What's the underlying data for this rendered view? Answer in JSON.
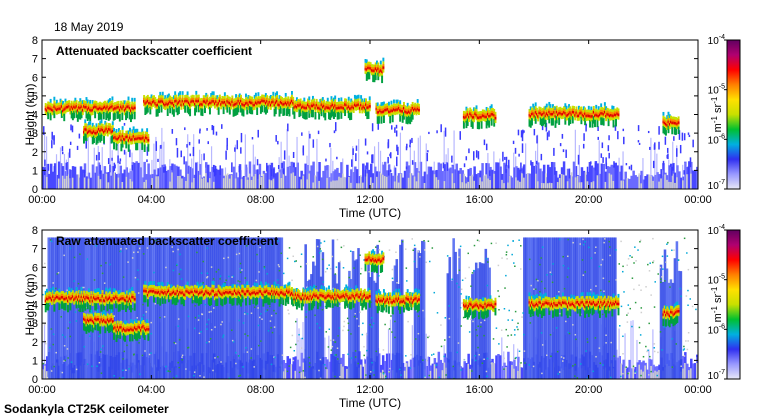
{
  "date": "18 May 2019",
  "footer": "Sodankyla CT25K ceilometer",
  "colorbar": {
    "unit_m": "m",
    "unit_m_exp": "-1",
    "unit_sr": " sr",
    "unit_sr_exp": "-1",
    "ticks": [
      {
        "base": "10",
        "exp": "-4"
      },
      {
        "base": "10",
        "exp": "-5"
      },
      {
        "base": "10",
        "exp": "-6"
      },
      {
        "base": "10",
        "exp": "-7"
      }
    ],
    "colors": [
      "#e8e8f8",
      "#9898ff",
      "#3030f0",
      "#00b0e0",
      "#00c030",
      "#c8e000",
      "#ffe000",
      "#ff8000",
      "#ff0000",
      "#b00070",
      "#600060"
    ]
  },
  "chart_data": [
    {
      "type": "heatmap",
      "title": "Attenuated backscatter coefficient",
      "xlabel": "Time (UTC)",
      "ylabel": "Height (km)",
      "xticks": [
        "00:00",
        "04:00",
        "08:00",
        "12:00",
        "16:00",
        "20:00",
        "00:00"
      ],
      "yticks": [
        "0",
        "1",
        "2",
        "3",
        "4",
        "5",
        "6",
        "7",
        "8"
      ],
      "xlim_hours": [
        0,
        24
      ],
      "ylim_km": [
        0,
        8
      ],
      "colorscale_range": [
        1e-07,
        0.0001
      ],
      "features": [
        {
          "name": "cloud-layer",
          "start_h": 0.1,
          "end_h": 3.4,
          "height_km": 4.3
        },
        {
          "name": "cloud-layer",
          "start_h": 3.7,
          "end_h": 9.2,
          "height_km": 4.6
        },
        {
          "name": "cloud-layer",
          "start_h": 9.2,
          "end_h": 12.0,
          "height_km": 4.4
        },
        {
          "name": "lower-layer",
          "start_h": 1.5,
          "end_h": 2.6,
          "height_km": 3.1
        },
        {
          "name": "lower-layer",
          "start_h": 2.6,
          "end_h": 3.9,
          "height_km": 2.7
        },
        {
          "name": "high-cloud",
          "start_h": 11.8,
          "end_h": 12.5,
          "height_km": 6.4
        },
        {
          "name": "cloud-layer",
          "start_h": 12.2,
          "end_h": 13.8,
          "height_km": 4.2
        },
        {
          "name": "cloud-layer",
          "start_h": 15.4,
          "end_h": 16.6,
          "height_km": 3.9
        },
        {
          "name": "cloud-layer",
          "start_h": 17.8,
          "end_h": 21.1,
          "height_km": 4.0
        },
        {
          "name": "cloud-layer",
          "start_h": 22.7,
          "end_h": 23.3,
          "height_km": 3.5
        }
      ]
    },
    {
      "type": "heatmap",
      "title": "Raw attenuated backscatter coefficient",
      "xlabel": "Time (UTC)",
      "ylabel": "Height (km)",
      "xticks": [
        "00:00",
        "04:00",
        "08:00",
        "12:00",
        "16:00",
        "20:00",
        "00:00"
      ],
      "yticks": [
        "0",
        "1",
        "2",
        "3",
        "4",
        "5",
        "6",
        "7",
        "8"
      ],
      "xlim_hours": [
        0,
        24
      ],
      "ylim_km": [
        0,
        8
      ],
      "colorscale_range": [
        1e-07,
        0.0001
      ],
      "features": [
        {
          "name": "cloud-layer",
          "start_h": 0.1,
          "end_h": 3.4,
          "height_km": 4.3
        },
        {
          "name": "cloud-layer",
          "start_h": 3.7,
          "end_h": 9.2,
          "height_km": 4.6
        },
        {
          "name": "cloud-layer",
          "start_h": 9.2,
          "end_h": 12.0,
          "height_km": 4.4
        },
        {
          "name": "lower-layer",
          "start_h": 1.5,
          "end_h": 2.6,
          "height_km": 3.1
        },
        {
          "name": "lower-layer",
          "start_h": 2.6,
          "end_h": 3.9,
          "height_km": 2.7
        },
        {
          "name": "high-cloud",
          "start_h": 11.8,
          "end_h": 12.5,
          "height_km": 6.4
        },
        {
          "name": "cloud-layer",
          "start_h": 12.2,
          "end_h": 13.8,
          "height_km": 4.2
        },
        {
          "name": "cloud-layer",
          "start_h": 15.4,
          "end_h": 16.6,
          "height_km": 3.9
        },
        {
          "name": "cloud-layer",
          "start_h": 17.8,
          "end_h": 21.1,
          "height_km": 4.0
        },
        {
          "name": "cloud-layer",
          "start_h": 22.7,
          "end_h": 23.3,
          "height_km": 3.5
        }
      ]
    }
  ]
}
